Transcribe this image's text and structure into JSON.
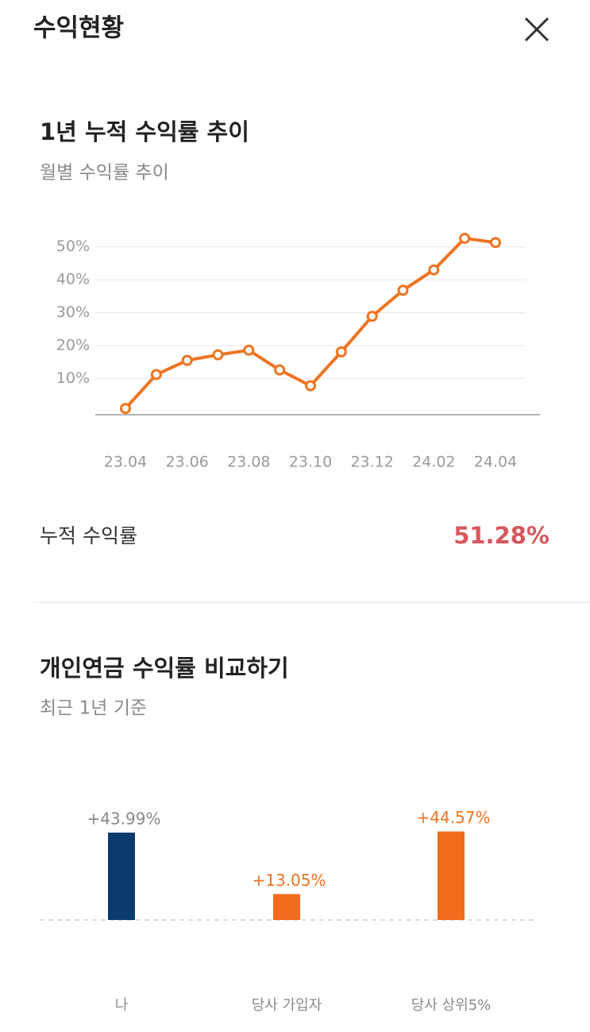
{
  "header": {
    "title": "수익현황"
  },
  "chart_data": [
    {
      "type": "line",
      "title": "1년 누적 수익률 추이",
      "subtitle": "월별 수익률 추이",
      "categories": [
        "23.04",
        null,
        "23.06",
        null,
        "23.08",
        null,
        "23.10",
        null,
        "23.12",
        null,
        "24.02",
        null,
        "24.04"
      ],
      "values": [
        0.9,
        11.2,
        15.5,
        17.2,
        18.6,
        12.6,
        7.8,
        18.1,
        28.9,
        36.8,
        43.0,
        52.6,
        51.3
      ],
      "color": "#ef7420",
      "ylim": [
        -1,
        55
      ],
      "yticks": [
        {
          "value": 10,
          "label": "10%"
        },
        {
          "value": 20,
          "label": "20%"
        },
        {
          "value": 30,
          "label": "30%"
        },
        {
          "value": 40,
          "label": "40%"
        },
        {
          "value": 50,
          "label": "50%"
        }
      ],
      "grid": true
    },
    {
      "type": "bar",
      "title": "개인연금 수익률 비교하기",
      "subtitle": "최근 1년 기준",
      "categories": [
        "나",
        "당사 가입자",
        "당사 상위5%"
      ],
      "values": [
        43.99,
        13.05,
        44.57
      ],
      "value_labels": [
        "+43.99%",
        "+13.05%",
        "+44.57%"
      ],
      "colors": [
        "#0b3a6e",
        "#f26b1d",
        "#f26b1d"
      ],
      "label_colors": [
        "#8a8a8a",
        "#ef7420",
        "#ef7420"
      ]
    }
  ],
  "summary": {
    "label": "누적 수익률",
    "value": "51.28%"
  }
}
